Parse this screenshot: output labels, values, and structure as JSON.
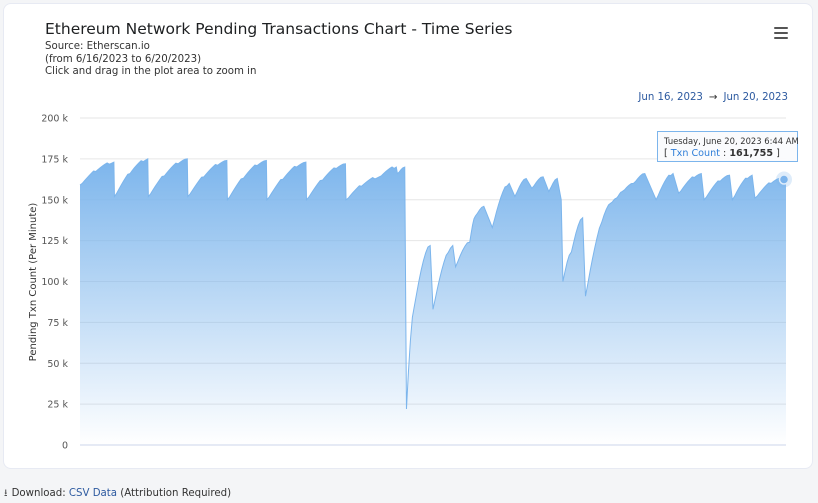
{
  "header": {
    "title": "Ethereum Network Pending Transactions Chart - Time Series",
    "source": "Source: Etherscan.io",
    "date_span": "(from 6/16/2023 to 6/20/2023)",
    "hint": "Click and drag in the plot area to zoom in"
  },
  "range": {
    "start": "Jun 16, 2023",
    "arrow": "→",
    "end": "Jun 20, 2023"
  },
  "menu_icon": "hamburger-menu-icon",
  "tooltip": {
    "date": "Tuesday, June 20, 2023 6:44 AM",
    "series_name": "Txn Count",
    "value": "161,755"
  },
  "footer": {
    "download_label": "Download:",
    "csv_link": "CSV Data",
    "attribution": "(Attribution Required)",
    "icon": "download-icon"
  },
  "colors": {
    "series": "#7cb5ec",
    "link": "#2d5aa0"
  },
  "chart_data": {
    "type": "area",
    "title": "Ethereum Network Pending Transactions Chart - Time Series",
    "ylabel": "Pending Txn Count (Per Minute)",
    "xlabel": "",
    "ylim": [
      0,
      200000
    ],
    "y_ticks": [
      "0",
      "25 k",
      "50 k",
      "75 k",
      "100 k",
      "125 k",
      "150 k",
      "175 k",
      "200 k"
    ],
    "grid": true,
    "x_range": [
      "Jun 16, 2023",
      "Jun 20, 2023"
    ],
    "series": [
      {
        "name": "Txn Count",
        "sawtooth_x": [
          0,
          0.2,
          0.4,
          0.6,
          0.8,
          1.0,
          1.2,
          1.4,
          1.6,
          1.8,
          2.0,
          2.2,
          2.4,
          2.6,
          2.8,
          3.0,
          3.2,
          3.4,
          3.6,
          3.8,
          4.0
        ],
        "points": [
          [
            0.0,
            159000
          ],
          [
            0.06,
            173000
          ],
          [
            0.061,
            152000
          ],
          [
            0.12,
            175000
          ],
          [
            0.121,
            152000
          ],
          [
            0.19,
            175000
          ],
          [
            0.191,
            152000
          ],
          [
            0.26,
            174000
          ],
          [
            0.261,
            150000
          ],
          [
            0.33,
            174000
          ],
          [
            0.331,
            150000
          ],
          [
            0.4,
            173000
          ],
          [
            0.401,
            150000
          ],
          [
            0.47,
            172000
          ],
          [
            0.471,
            150000
          ],
          [
            0.53,
            164000
          ],
          [
            0.56,
            170000
          ],
          [
            0.562,
            166000
          ],
          [
            0.575,
            170000
          ],
          [
            0.578,
            22000
          ],
          [
            0.592,
            85000
          ],
          [
            0.62,
            122000
          ],
          [
            0.625,
            83000
          ],
          [
            0.66,
            122000
          ],
          [
            0.665,
            109000
          ],
          [
            0.69,
            124000
          ],
          [
            0.7,
            140000
          ],
          [
            0.715,
            146000
          ],
          [
            0.73,
            133000
          ],
          [
            0.76,
            160000
          ],
          [
            0.77,
            152000
          ],
          [
            0.79,
            163000
          ],
          [
            0.8,
            157000
          ],
          [
            0.82,
            164000
          ],
          [
            0.83,
            155000
          ],
          [
            0.845,
            163000
          ],
          [
            0.852,
            150000
          ],
          [
            0.855,
            100000
          ],
          [
            0.87,
            118000
          ],
          [
            0.89,
            139000
          ],
          [
            0.895,
            91000
          ],
          [
            0.94,
            148000
          ],
          [
            0.95,
            151000
          ],
          [
            0.96,
            155000
          ],
          [
            0.98,
            160000
          ],
          [
            1.0,
            166000
          ],
          [
            1.02,
            150000
          ],
          [
            1.05,
            166000
          ],
          [
            1.06,
            154000
          ],
          [
            1.1,
            166000
          ],
          [
            1.105,
            150000
          ],
          [
            1.15,
            165000
          ],
          [
            1.155,
            150000
          ],
          [
            1.19,
            165000
          ],
          [
            1.195,
            151000
          ],
          [
            1.24,
            163000
          ],
          [
            1.25,
            161755
          ]
        ]
      }
    ]
  }
}
